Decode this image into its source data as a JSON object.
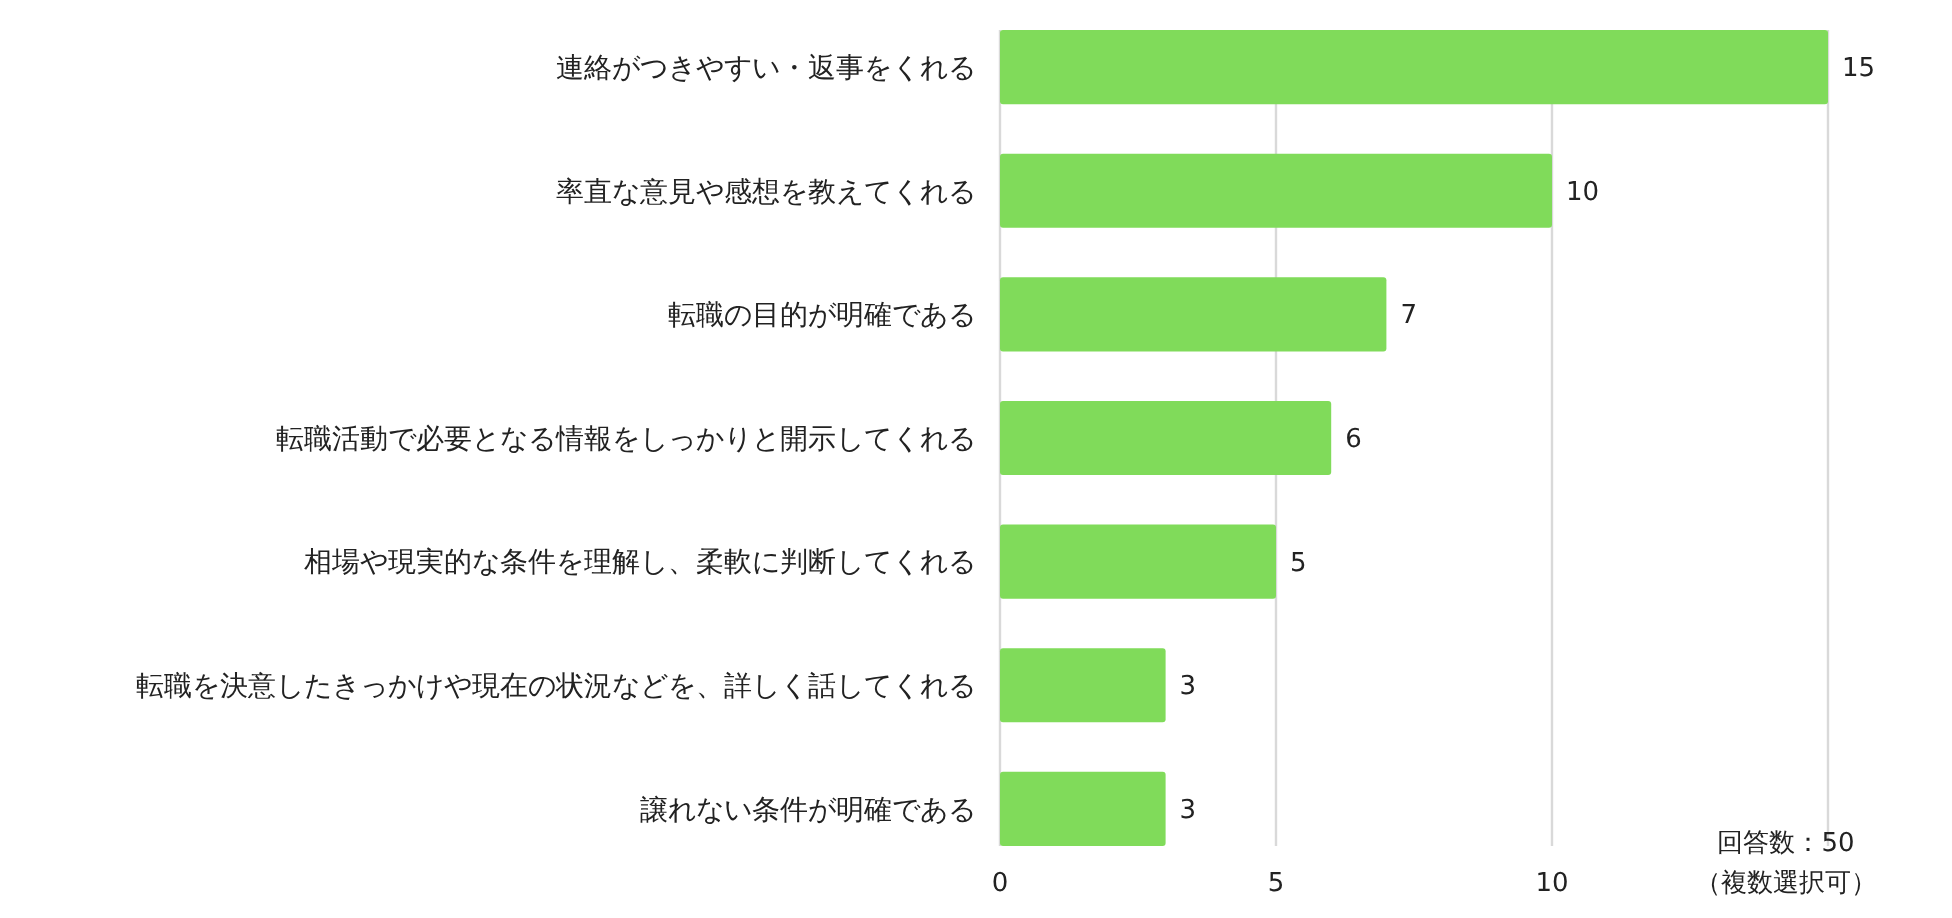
{
  "chart_data": {
    "type": "bar",
    "orientation": "horizontal",
    "categories": [
      "連絡がつきやすい・返事をくれる",
      "率直な意見や感想を教えてくれる",
      "転職の目的が明確である",
      "転職活動で必要となる情報をしっかりと開示してくれる",
      "相場や現実的な条件を理解し、柔軟に判断してくれる",
      "転職を決意したきっかけや現在の状況などを、詳しく話してくれる",
      "譲れない条件が明確である"
    ],
    "values": [
      15,
      10,
      7,
      6,
      5,
      3,
      3
    ],
    "color": "#80db5a",
    "xlim": [
      0,
      15
    ],
    "xticks": [
      0,
      5,
      10,
      {
        "value": 15,
        "label": null
      }
    ],
    "grid": "x",
    "data_labels": true,
    "annotations": [
      "回答数：50",
      "（複数選択可）"
    ]
  }
}
